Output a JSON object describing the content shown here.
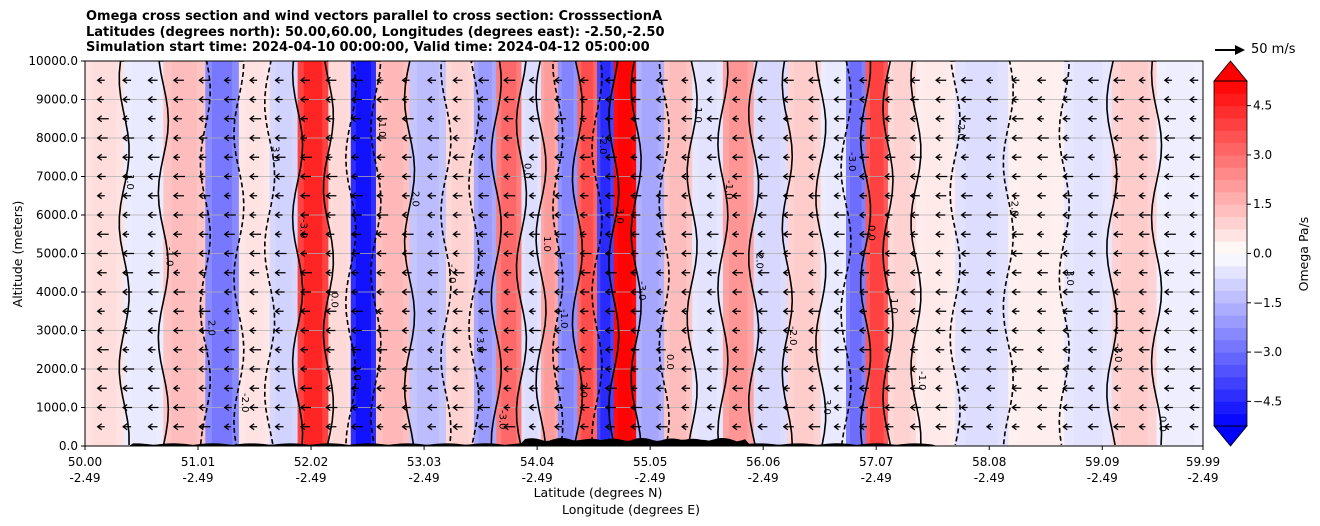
{
  "chart_data": {
    "type": "contour_cross_section",
    "title": [
      "Omega cross section and wind vectors parallel to cross section: CrosssectionA",
      "Latitudes (degrees north): 50.00,60.00, Longitudes (degrees east): -2.50,-2.50",
      "Simulation start time: 2024-04-10 00:00:00, Valid time: 2024-04-12 05:00:00"
    ],
    "xlabel": "Latitude (degrees N)",
    "xlabel2": "Longitude (degrees E)",
    "ylabel": "Altitude (meters)",
    "x_range": [
      50.0,
      59.99
    ],
    "ylim": [
      0,
      10000
    ],
    "y_ticks": [
      "0.0",
      "1000.0",
      "2000.0",
      "3000.0",
      "4000.0",
      "5000.0",
      "6000.0",
      "7000.0",
      "8000.0",
      "9000.0",
      "10000.0"
    ],
    "y_tick_values": [
      0,
      1000,
      2000,
      3000,
      4000,
      5000,
      6000,
      7000,
      8000,
      9000,
      10000
    ],
    "x_tick_values": [
      50.0,
      51.01,
      52.02,
      53.03,
      54.04,
      55.05,
      56.06,
      57.07,
      58.08,
      59.09,
      59.99
    ],
    "x_ticks_lat": [
      "50.00",
      "51.01",
      "52.02",
      "53.03",
      "54.04",
      "55.05",
      "56.06",
      "57.07",
      "58.08",
      "59.09",
      "59.99"
    ],
    "x_ticks_lon": [
      "-2.49",
      "-2.49",
      "-2.49",
      "-2.49",
      "-2.49",
      "-2.49",
      "-2.49",
      "-2.49",
      "-2.49",
      "-2.49",
      "-2.49"
    ],
    "colorbar": {
      "label": "Omega Pa/s",
      "range": [
        -5.25,
        5.25
      ],
      "ticks": [
        "−4.5",
        "−3.0",
        "−1.5",
        "0.0",
        "1.5",
        "3.0",
        "4.5"
      ],
      "tick_values": [
        -4.5,
        -3.0,
        -1.5,
        0.0,
        1.5,
        3.0,
        4.5
      ],
      "colors": {
        "low": "#0000ff",
        "mid": "#ffffff",
        "high": "#ff0000"
      }
    },
    "vector_key": {
      "label": "50 m/s",
      "value": 50
    },
    "grid": true,
    "omega_columns": [
      {
        "lat": 50.25,
        "omega": 0.6
      },
      {
        "lat": 50.45,
        "omega": -0.4
      },
      {
        "lat": 50.95,
        "omega": 1.2
      },
      {
        "lat": 51.2,
        "omega": -2.4
      },
      {
        "lat": 51.55,
        "omega": 0.5
      },
      {
        "lat": 51.75,
        "omega": -0.8
      },
      {
        "lat": 52.05,
        "omega": 3.9
      },
      {
        "lat": 52.3,
        "omega": 0.7
      },
      {
        "lat": 52.45,
        "omega": -4.3
      },
      {
        "lat": 52.75,
        "omega": 1.3
      },
      {
        "lat": 53.05,
        "omega": -1.2
      },
      {
        "lat": 53.4,
        "omega": 0.8
      },
      {
        "lat": 53.55,
        "omega": -1.8
      },
      {
        "lat": 53.8,
        "omega": 2.7
      },
      {
        "lat": 54.0,
        "omega": -0.6
      },
      {
        "lat": 54.15,
        "omega": 1.8
      },
      {
        "lat": 54.3,
        "omega": -2.2
      },
      {
        "lat": 54.5,
        "omega": 3.2
      },
      {
        "lat": 54.65,
        "omega": -3.8
      },
      {
        "lat": 54.8,
        "omega": 5.0
      },
      {
        "lat": 55.05,
        "omega": -1.6
      },
      {
        "lat": 55.3,
        "omega": 1.2
      },
      {
        "lat": 55.55,
        "omega": -0.5
      },
      {
        "lat": 55.85,
        "omega": 1.9
      },
      {
        "lat": 56.1,
        "omega": -0.7
      },
      {
        "lat": 56.45,
        "omega": 0.9
      },
      {
        "lat": 56.7,
        "omega": -0.4
      },
      {
        "lat": 56.9,
        "omega": -2.6
      },
      {
        "lat": 57.05,
        "omega": 3.4
      },
      {
        "lat": 57.3,
        "omega": 0.8
      },
      {
        "lat": 57.55,
        "omega": 0.4
      },
      {
        "lat": 58.0,
        "omega": -0.6
      },
      {
        "lat": 58.5,
        "omega": 0.3
      },
      {
        "lat": 59.0,
        "omega": -0.5
      },
      {
        "lat": 59.35,
        "omega": 0.9
      },
      {
        "lat": 59.8,
        "omega": -0.3
      }
    ],
    "contour_labels": [
      "0.0",
      "1.0",
      "-1.0",
      "2.0",
      "-2.0",
      "3.0",
      "-3.0"
    ]
  }
}
